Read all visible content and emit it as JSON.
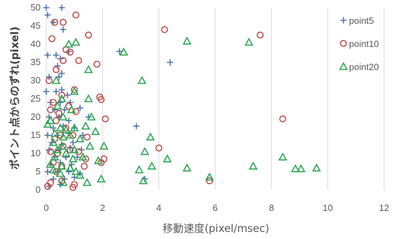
{
  "chart_data": {
    "type": "scatter",
    "xlabel": "移動速度(pixel/msec)",
    "ylabel": "ポイント点からのずれ(pixel)",
    "xlim": [
      0,
      12
    ],
    "ylim": [
      0,
      50
    ],
    "xticks": [
      0,
      2,
      4,
      6,
      8,
      10,
      12
    ],
    "yticks": [
      0,
      5,
      10,
      15,
      20,
      25,
      30,
      35,
      40,
      45,
      50
    ],
    "grid": "x-major-vertical",
    "legend_position": "right",
    "series": [
      {
        "name": "point5",
        "marker": "plus",
        "color": "#4a6db0",
        "points": [
          [
            0.0,
            50.0
          ],
          [
            0.05,
            48.0
          ],
          [
            0.55,
            50.0
          ],
          [
            0.25,
            46.0
          ],
          [
            0.6,
            44.0
          ],
          [
            0.8,
            38.0
          ],
          [
            0.05,
            37.0
          ],
          [
            0.35,
            37.0
          ],
          [
            0.5,
            36.0
          ],
          [
            0.4,
            34.0
          ],
          [
            0.55,
            32.0
          ],
          [
            0.1,
            31.0
          ],
          [
            0.45,
            31.0
          ],
          [
            0.0,
            27.0
          ],
          [
            0.35,
            27.0
          ],
          [
            0.55,
            27.5
          ],
          [
            0.75,
            26.0
          ],
          [
            0.15,
            24.0
          ],
          [
            0.5,
            24.0
          ],
          [
            0.85,
            24.0
          ],
          [
            0.3,
            22.0
          ],
          [
            0.65,
            22.0
          ],
          [
            1.2,
            22.5
          ],
          [
            0.1,
            20.0
          ],
          [
            0.45,
            20.0
          ],
          [
            0.8,
            19.0
          ],
          [
            1.5,
            20.0
          ],
          [
            0.25,
            17.0
          ],
          [
            0.6,
            17.5
          ],
          [
            1.0,
            17.0
          ],
          [
            0.05,
            15.0
          ],
          [
            0.4,
            15.0
          ],
          [
            0.8,
            15.5
          ],
          [
            1.3,
            15.0
          ],
          [
            0.2,
            13.0
          ],
          [
            0.55,
            12.5
          ],
          [
            0.95,
            13.0
          ],
          [
            0.1,
            11.0
          ],
          [
            0.45,
            11.0
          ],
          [
            0.85,
            11.5
          ],
          [
            1.25,
            11.0
          ],
          [
            0.3,
            9.0
          ],
          [
            0.7,
            9.0
          ],
          [
            1.1,
            9.0
          ],
          [
            0.15,
            7.0
          ],
          [
            0.5,
            7.5
          ],
          [
            0.9,
            7.0
          ],
          [
            0.05,
            5.0
          ],
          [
            0.4,
            5.0
          ],
          [
            0.8,
            5.0
          ],
          [
            1.2,
            4.5
          ],
          [
            0.25,
            3.0
          ],
          [
            0.65,
            3.0
          ],
          [
            1.0,
            3.5
          ],
          [
            0.1,
            1.0
          ],
          [
            0.5,
            1.5
          ],
          [
            2.6,
            38.0
          ],
          [
            4.4,
            35.0
          ],
          [
            3.2,
            17.5
          ],
          [
            3.5,
            3.0
          ]
        ]
      },
      {
        "name": "point10",
        "marker": "circle",
        "color": "#c0504d",
        "points": [
          [
            0.6,
            46.0
          ],
          [
            1.05,
            48.0
          ],
          [
            0.3,
            46.0
          ],
          [
            1.5,
            42.5
          ],
          [
            0.2,
            41.5
          ],
          [
            0.7,
            38.5
          ],
          [
            0.85,
            37.8
          ],
          [
            0.6,
            35.5
          ],
          [
            1.15,
            35.5
          ],
          [
            1.8,
            34.5
          ],
          [
            0.35,
            33.0
          ],
          [
            0.1,
            30.0
          ],
          [
            1.0,
            27.5
          ],
          [
            0.55,
            26.0
          ],
          [
            1.9,
            25.5
          ],
          [
            1.95,
            24.8
          ],
          [
            0.25,
            24.0
          ],
          [
            0.8,
            23.0
          ],
          [
            0.15,
            22.0
          ],
          [
            0.45,
            21.0
          ],
          [
            1.05,
            21.5
          ],
          [
            0.35,
            19.0
          ],
          [
            2.1,
            19.5
          ],
          [
            0.7,
            17.0
          ],
          [
            0.5,
            15.0
          ],
          [
            0.95,
            15.0
          ],
          [
            0.3,
            14.0
          ],
          [
            1.45,
            14.5
          ],
          [
            0.6,
            12.0
          ],
          [
            0.15,
            10.5
          ],
          [
            0.4,
            10.0
          ],
          [
            0.85,
            11.0
          ],
          [
            1.15,
            10.5
          ],
          [
            1.4,
            8.5
          ],
          [
            2.05,
            8.5
          ],
          [
            0.25,
            7.5
          ],
          [
            0.55,
            6.5
          ],
          [
            1.35,
            6.5
          ],
          [
            1.95,
            7.5
          ],
          [
            0.35,
            5.0
          ],
          [
            0.15,
            2.0
          ],
          [
            0.55,
            2.5
          ],
          [
            0.05,
            1.0
          ],
          [
            1.0,
            1.5
          ],
          [
            0.95,
            0.7
          ],
          [
            4.2,
            44.0
          ],
          [
            7.6,
            42.5
          ],
          [
            4.0,
            11.5
          ],
          [
            8.4,
            19.5
          ],
          [
            5.8,
            2.5
          ]
        ]
      },
      {
        "name": "point20",
        "marker": "triangle",
        "color": "#2aa650",
        "points": [
          [
            0.8,
            40.0
          ],
          [
            1.05,
            40.5
          ],
          [
            2.75,
            37.8
          ],
          [
            5.0,
            40.8
          ],
          [
            7.2,
            40.5
          ],
          [
            1.5,
            33.0
          ],
          [
            0.35,
            30.0
          ],
          [
            3.4,
            30.0
          ],
          [
            1.0,
            27.0
          ],
          [
            0.55,
            25.0
          ],
          [
            1.5,
            25.0
          ],
          [
            0.4,
            23.0
          ],
          [
            0.9,
            22.0
          ],
          [
            0.15,
            19.0
          ],
          [
            0.6,
            20.0
          ],
          [
            1.6,
            20.0
          ],
          [
            0.05,
            18.0
          ],
          [
            0.5,
            17.0
          ],
          [
            0.7,
            16.5
          ],
          [
            1.0,
            17.0
          ],
          [
            1.4,
            17.5
          ],
          [
            1.75,
            16.0
          ],
          [
            0.3,
            15.5
          ],
          [
            0.6,
            14.5
          ],
          [
            0.85,
            15.0
          ],
          [
            1.2,
            14.0
          ],
          [
            3.7,
            14.5
          ],
          [
            0.25,
            13.0
          ],
          [
            0.55,
            12.0
          ],
          [
            1.55,
            12.0
          ],
          [
            2.05,
            12.0
          ],
          [
            0.4,
            11.0
          ],
          [
            0.7,
            10.0
          ],
          [
            1.0,
            11.0
          ],
          [
            3.5,
            10.5
          ],
          [
            0.3,
            9.0
          ],
          [
            0.95,
            8.5
          ],
          [
            1.3,
            9.0
          ],
          [
            1.85,
            8.0
          ],
          [
            4.3,
            8.5
          ],
          [
            8.4,
            9.0
          ],
          [
            0.15,
            7.0
          ],
          [
            0.55,
            6.5
          ],
          [
            0.85,
            6.0
          ],
          [
            3.75,
            6.5
          ],
          [
            5.0,
            6.0
          ],
          [
            7.35,
            6.5
          ],
          [
            8.85,
            5.8
          ],
          [
            9.05,
            5.8
          ],
          [
            9.6,
            6.0
          ],
          [
            0.25,
            5.5
          ],
          [
            1.05,
            5.0
          ],
          [
            3.3,
            5.5
          ],
          [
            5.8,
            3.5
          ],
          [
            1.95,
            3.0
          ],
          [
            0.6,
            2.0
          ],
          [
            1.45,
            2.0
          ],
          [
            3.45,
            2.5
          ],
          [
            1.2,
            4.0
          ],
          [
            0.5,
            4.5
          ]
        ]
      }
    ]
  }
}
